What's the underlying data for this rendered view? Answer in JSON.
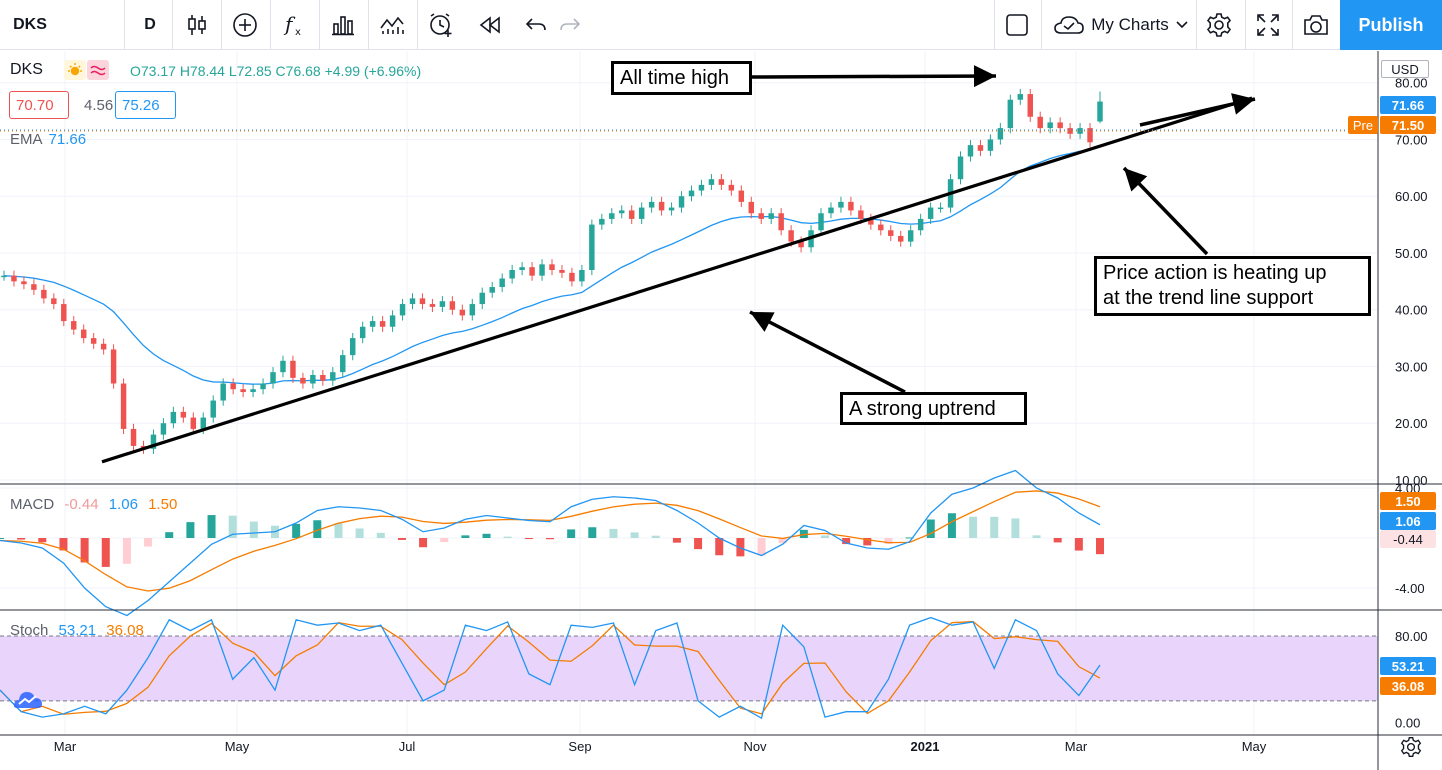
{
  "toolbar": {
    "symbol": "DKS",
    "interval": "D",
    "layout_menu": "My Charts",
    "publish": "Publish",
    "icons": [
      "bar-style-icon",
      "add-compare-icon",
      "indicators-icon",
      "templates-icon",
      "replay-icon",
      "alert-icon",
      "rewind-icon",
      "undo-icon",
      "redo-icon",
      "layout-icon",
      "cloud-icon",
      "settings-icon",
      "fullscreen-icon",
      "camera-icon"
    ]
  },
  "legend": {
    "symbol": "DKS",
    "ohlc": "O73.17 H78.44 L72.85 C76.68 +4.99 (+6.96%)",
    "bb_lower": "70.70",
    "bb_mid": "4.56",
    "bb_upper": "75.26",
    "ema_label": "EMA",
    "ema_value": "71.66",
    "macd_label": "MACD",
    "macd_hist": "-0.44",
    "macd_line": "1.06",
    "macd_signal": "1.50",
    "stoch_label": "Stoch",
    "stoch_k": "53.21",
    "stoch_d": "36.08"
  },
  "annotations": {
    "ath": "All time high",
    "heat_1": "Price action is heating up",
    "heat_2": "at the trend line support",
    "trend": "A strong uptrend"
  },
  "price_scale": {
    "currency": "USD",
    "last": "71.66",
    "pre_label": "Pre",
    "pre_value": "71.50",
    "macd_signal": "1.50",
    "macd_line": "1.06",
    "macd_hist": "-0.44",
    "stoch_k": "53.21",
    "stoch_d": "36.08"
  },
  "colors": {
    "up": "#26a69a",
    "down": "#ef5350",
    "ema": "#2196f3",
    "macd": "#2196f3",
    "signal": "#f57c00",
    "stoch_band": "#e9d5fb"
  },
  "chart_data": [
    {
      "type": "candlestick",
      "title": "DKS",
      "interval": "D",
      "x_ticks": [
        "Mar",
        "May",
        "Jul",
        "Sep",
        "Nov",
        "2021",
        "Mar",
        "May"
      ],
      "y_ticks": [
        "10.00",
        "20.00",
        "30.00",
        "40.00",
        "50.00",
        "60.00",
        "70.00",
        "80.00"
      ],
      "ylim": [
        10,
        84
      ],
      "grid": true,
      "last_ohlc": {
        "open": 73.17,
        "high": 78.44,
        "low": 72.85,
        "close": 76.68,
        "change": 4.99,
        "change_pct": 6.96
      },
      "close_series": [
        46,
        45,
        44.5,
        43.5,
        42,
        41,
        38,
        36.5,
        35,
        34,
        33,
        27,
        19,
        16,
        15.5,
        18,
        20,
        22,
        21,
        19,
        21,
        24,
        27,
        26,
        25.5,
        26,
        27,
        29,
        31,
        28,
        27,
        28.5,
        27.5,
        29,
        32,
        35,
        37,
        38,
        37,
        39,
        41,
        42,
        41,
        40.5,
        41.5,
        40,
        39,
        41,
        43,
        44,
        45.5,
        47,
        47.5,
        46,
        48,
        47,
        46.5,
        45,
        47,
        55,
        56,
        57,
        57.5,
        56,
        58,
        59,
        57.5,
        58,
        60,
        61,
        62,
        63,
        62,
        61,
        59,
        57,
        56,
        57,
        54,
        52,
        51,
        54,
        57,
        58,
        59,
        57.5,
        56,
        55,
        54,
        53,
        52,
        54,
        56,
        58,
        58,
        63,
        67,
        69,
        68,
        70,
        72,
        77,
        78,
        74,
        72,
        73,
        72,
        71,
        72,
        69.5,
        76.68
      ],
      "ema": {
        "name": "EMA",
        "last": 71.66
      },
      "levels": {
        "last": 71.66,
        "pre": 71.5
      },
      "trendline": {
        "from": {
          "x_label": "Mar",
          "y": 13.2
        },
        "to": {
          "x_label": "Mar 2021",
          "y": 72
        }
      }
    },
    {
      "type": "line",
      "title": "MACD",
      "y_ticks": [
        "-4.00",
        "0.00",
        "4.00"
      ],
      "ylim": [
        -6.5,
        6
      ],
      "series": [
        {
          "name": "MACD",
          "last": 1.06
        },
        {
          "name": "Signal",
          "last": 1.5
        }
      ],
      "histogram_last": -0.44,
      "macd_series": [
        -0.2,
        -0.4,
        -0.8,
        -2,
        -4,
        -5.5,
        -6.2,
        -5,
        -3.5,
        -2,
        -0.5,
        0.3,
        0.4,
        0.5,
        1.2,
        2.2,
        2.5,
        2.4,
        2.2,
        1.5,
        0.5,
        0.8,
        1.5,
        1.8,
        1.6,
        1.4,
        1.3,
        2.5,
        3.1,
        3.3,
        3.2,
        3,
        2.2,
        1.2,
        0,
        -0.8,
        -1.4,
        -0.5,
        1,
        0.6,
        -0.4,
        -0.8,
        -0.9,
        -0.3,
        2,
        3.5,
        4,
        4.8,
        5.4,
        4,
        3.2,
        2,
        1.06
      ]
    },
    {
      "type": "line",
      "title": "Stoch",
      "y_ticks": [
        "0.00",
        "80.00"
      ],
      "ylim": [
        -3,
        101
      ],
      "band": [
        20,
        80
      ],
      "series": [
        {
          "name": "%K",
          "last": 53.21
        },
        {
          "name": "%D",
          "last": 36.08
        }
      ],
      "k_series": [
        30,
        10,
        5,
        8,
        15,
        8,
        30,
        60,
        95,
        85,
        95,
        40,
        60,
        30,
        95,
        90,
        92,
        85,
        90,
        55,
        20,
        30,
        90,
        85,
        93,
        45,
        35,
        90,
        88,
        92,
        35,
        85,
        92,
        20,
        5,
        15,
        4,
        90,
        70,
        5,
        10,
        10,
        40,
        90,
        97,
        90,
        93,
        50,
        95,
        85,
        45,
        25,
        53.21
      ]
    }
  ]
}
